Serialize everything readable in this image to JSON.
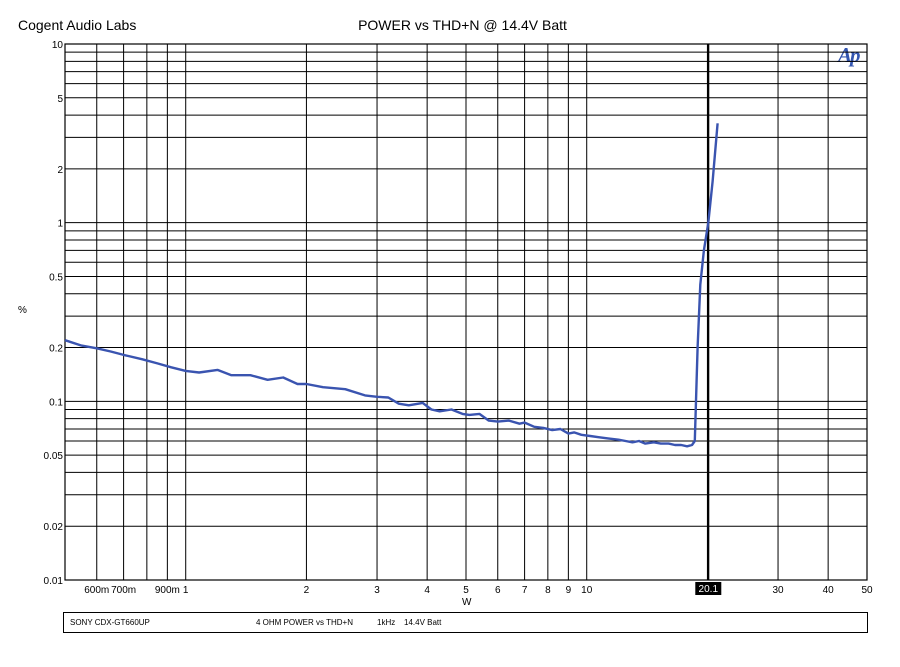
{
  "header": {
    "company": "Cogent Audio Labs",
    "title": "POWER vs THD+N @ 14.4V Batt",
    "logo": "Ap"
  },
  "footer": {
    "device": "SONY CDX-GT660UP",
    "description": "4 OHM  POWER vs THD+N",
    "frequency": "1kHz",
    "battery": "14.4V Batt"
  },
  "chart_data": {
    "type": "line",
    "title": "POWER vs THD+N @ 14.4V Batt",
    "xlabel": "W",
    "ylabel": "%",
    "xscale": "log",
    "yscale": "log",
    "xlim": [
      0.5,
      50
    ],
    "ylim": [
      0.01,
      10
    ],
    "grid": true,
    "line_color": "#3a54b0",
    "x_ticks": [
      {
        "v": 0.6,
        "label": "600m"
      },
      {
        "v": 0.7,
        "label": "700m"
      },
      {
        "v": 0.9,
        "label": "900m"
      },
      {
        "v": 1,
        "label": "1"
      },
      {
        "v": 2,
        "label": "2"
      },
      {
        "v": 3,
        "label": "3"
      },
      {
        "v": 4,
        "label": "4"
      },
      {
        "v": 5,
        "label": "5"
      },
      {
        "v": 6,
        "label": "6"
      },
      {
        "v": 7,
        "label": "7"
      },
      {
        "v": 8,
        "label": "8"
      },
      {
        "v": 9,
        "label": "9"
      },
      {
        "v": 10,
        "label": "10"
      },
      {
        "v": 30,
        "label": "30"
      },
      {
        "v": 40,
        "label": "40"
      },
      {
        "v": 50,
        "label": "50"
      }
    ],
    "y_ticks": [
      {
        "v": 10,
        "label": "10"
      },
      {
        "v": 5,
        "label": "5"
      },
      {
        "v": 2,
        "label": "2"
      },
      {
        "v": 1,
        "label": "1"
      },
      {
        "v": 0.5,
        "label": "0.5"
      },
      {
        "v": 0.2,
        "label": "0.2"
      },
      {
        "v": 0.1,
        "label": "0.1"
      },
      {
        "v": 0.05,
        "label": "0.05"
      },
      {
        "v": 0.02,
        "label": "0.02"
      },
      {
        "v": 0.01,
        "label": "0.01"
      }
    ],
    "marker": {
      "x": 20.1,
      "label": "20.1"
    },
    "series": [
      {
        "x": [
          0.5,
          0.55,
          0.6,
          0.65,
          0.7,
          0.78,
          0.85,
          0.92,
          1.0,
          1.08,
          1.2,
          1.3,
          1.45,
          1.6,
          1.75,
          1.9,
          2.0,
          2.2,
          2.5,
          2.8,
          3.0,
          3.2,
          3.4,
          3.6,
          3.9,
          4.1,
          4.3,
          4.6,
          4.9,
          5.1,
          5.4,
          5.7,
          6.0,
          6.4,
          6.8,
          7.0,
          7.4,
          7.8,
          8.2,
          8.6,
          9.0,
          9.3,
          9.7,
          10.2,
          10.7,
          11.3,
          12.0,
          12.5,
          13.0,
          13.5,
          14.0,
          14.7,
          15.3,
          16.0,
          16.6,
          17.2,
          17.8,
          18.3,
          18.6,
          18.9,
          19.2,
          19.6,
          20.1,
          20.6,
          21.2
        ],
        "y": [
          0.22,
          0.205,
          0.198,
          0.19,
          0.182,
          0.172,
          0.163,
          0.155,
          0.148,
          0.145,
          0.15,
          0.14,
          0.14,
          0.132,
          0.136,
          0.125,
          0.125,
          0.12,
          0.117,
          0.108,
          0.106,
          0.105,
          0.097,
          0.095,
          0.098,
          0.09,
          0.088,
          0.09,
          0.085,
          0.084,
          0.085,
          0.078,
          0.077,
          0.078,
          0.075,
          0.076,
          0.072,
          0.071,
          0.069,
          0.07,
          0.066,
          0.067,
          0.065,
          0.064,
          0.063,
          0.062,
          0.061,
          0.06,
          0.059,
          0.06,
          0.058,
          0.059,
          0.058,
          0.058,
          0.057,
          0.057,
          0.056,
          0.057,
          0.06,
          0.2,
          0.45,
          0.7,
          1.0,
          1.7,
          3.6
        ]
      }
    ]
  }
}
